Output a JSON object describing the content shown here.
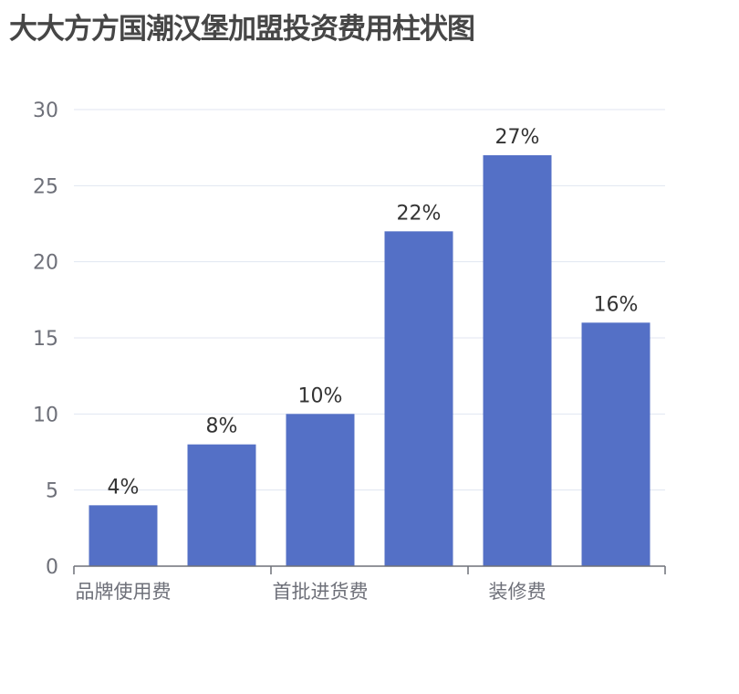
{
  "chart_data": {
    "type": "bar",
    "title": "大大方方国潮汉堡加盟投资费用柱状图",
    "categories": [
      "品牌使用费",
      "",
      "首批进货费",
      "",
      "装修费",
      ""
    ],
    "visible_category_labels": [
      "品牌使用费",
      "首批进货费",
      "装修费"
    ],
    "values": [
      4,
      8,
      10,
      22,
      27,
      16
    ],
    "data_labels": [
      "4%",
      "8%",
      "10%",
      "22%",
      "27%",
      "16%"
    ],
    "ylim": [
      0,
      30
    ],
    "yticks": [
      0,
      5,
      10,
      15,
      20,
      25,
      30
    ],
    "xlabel": "",
    "ylabel": "",
    "grid": true,
    "bar_color": "#5470c6",
    "grid_color": "#e0e6f1",
    "axis_color": "#6e7079"
  }
}
